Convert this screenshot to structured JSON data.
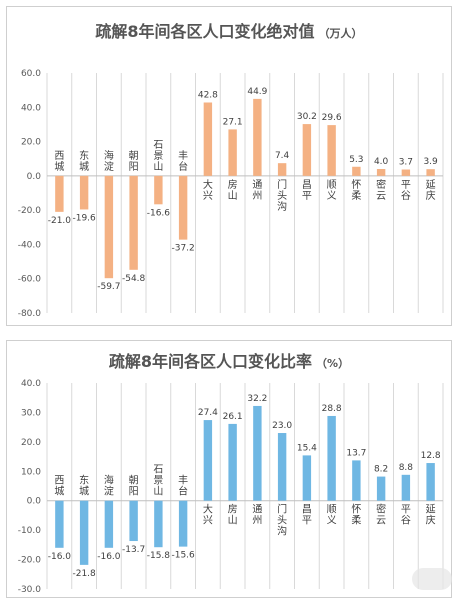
{
  "charts": [
    {
      "title": "疏解8年间各区人口变化绝对值",
      "title_unit": "（万人）",
      "bar_color": "#f4b183"
    },
    {
      "title": "疏解8年间各区人口变化比率",
      "title_unit": "（%）",
      "bar_color": "#6fb7e3"
    }
  ],
  "chart_data": [
    {
      "type": "bar",
      "title": "疏解8年间各区人口变化绝对值（万人）",
      "categories": [
        "西城",
        "东城",
        "海淀",
        "朝阳",
        "石景山",
        "丰台",
        "大兴",
        "房山",
        "通州",
        "门头沟",
        "昌平",
        "顺义",
        "怀柔",
        "密云",
        "平谷",
        "延庆"
      ],
      "values": [
        -21.0,
        -19.6,
        -59.7,
        -54.8,
        -16.6,
        -37.2,
        42.8,
        27.1,
        44.9,
        7.4,
        30.2,
        29.6,
        5.3,
        4.0,
        3.7,
        3.9
      ],
      "value_labels": [
        "-21.0",
        "-19.6",
        "-59.7",
        "-54.8",
        "-16.6",
        "-37.2",
        "42.8",
        "27.1",
        "44.9",
        "7.4",
        "30.2",
        "29.6",
        "5.3",
        "4.0",
        "3.7",
        "3.9"
      ],
      "yticks": [
        "-80.0",
        "-60.0",
        "-40.0",
        "-20.0",
        "0.0",
        "20.0",
        "40.0",
        "60.0"
      ],
      "ylim": [
        -80,
        60
      ],
      "grid": "vertical",
      "legend": "none"
    },
    {
      "type": "bar",
      "title": "疏解8年间各区人口变化比率（%）",
      "categories": [
        "西城",
        "东城",
        "海淀",
        "朝阳",
        "石景山",
        "丰台",
        "大兴",
        "房山",
        "通州",
        "门头沟",
        "昌平",
        "顺义",
        "怀柔",
        "密云",
        "平谷",
        "延庆"
      ],
      "values": [
        -16.0,
        -21.8,
        -16.0,
        -13.7,
        -15.8,
        -15.6,
        27.4,
        26.1,
        32.2,
        23.0,
        15.4,
        28.8,
        13.7,
        8.2,
        8.8,
        12.8
      ],
      "value_labels": [
        "-16.0",
        "-21.8",
        "-16.0",
        "-13.7",
        "-15.8",
        "-15.6",
        "27.4",
        "26.1",
        "32.2",
        "23.0",
        "15.4",
        "28.8",
        "13.7",
        "8.2",
        "8.8",
        "12.8"
      ],
      "yticks": [
        "-30.0",
        "-20.0",
        "-10.0",
        "0.0",
        "10.0",
        "20.0",
        "30.0",
        "40.0"
      ],
      "ylim": [
        -30,
        40
      ],
      "grid": "vertical",
      "legend": "none"
    }
  ]
}
